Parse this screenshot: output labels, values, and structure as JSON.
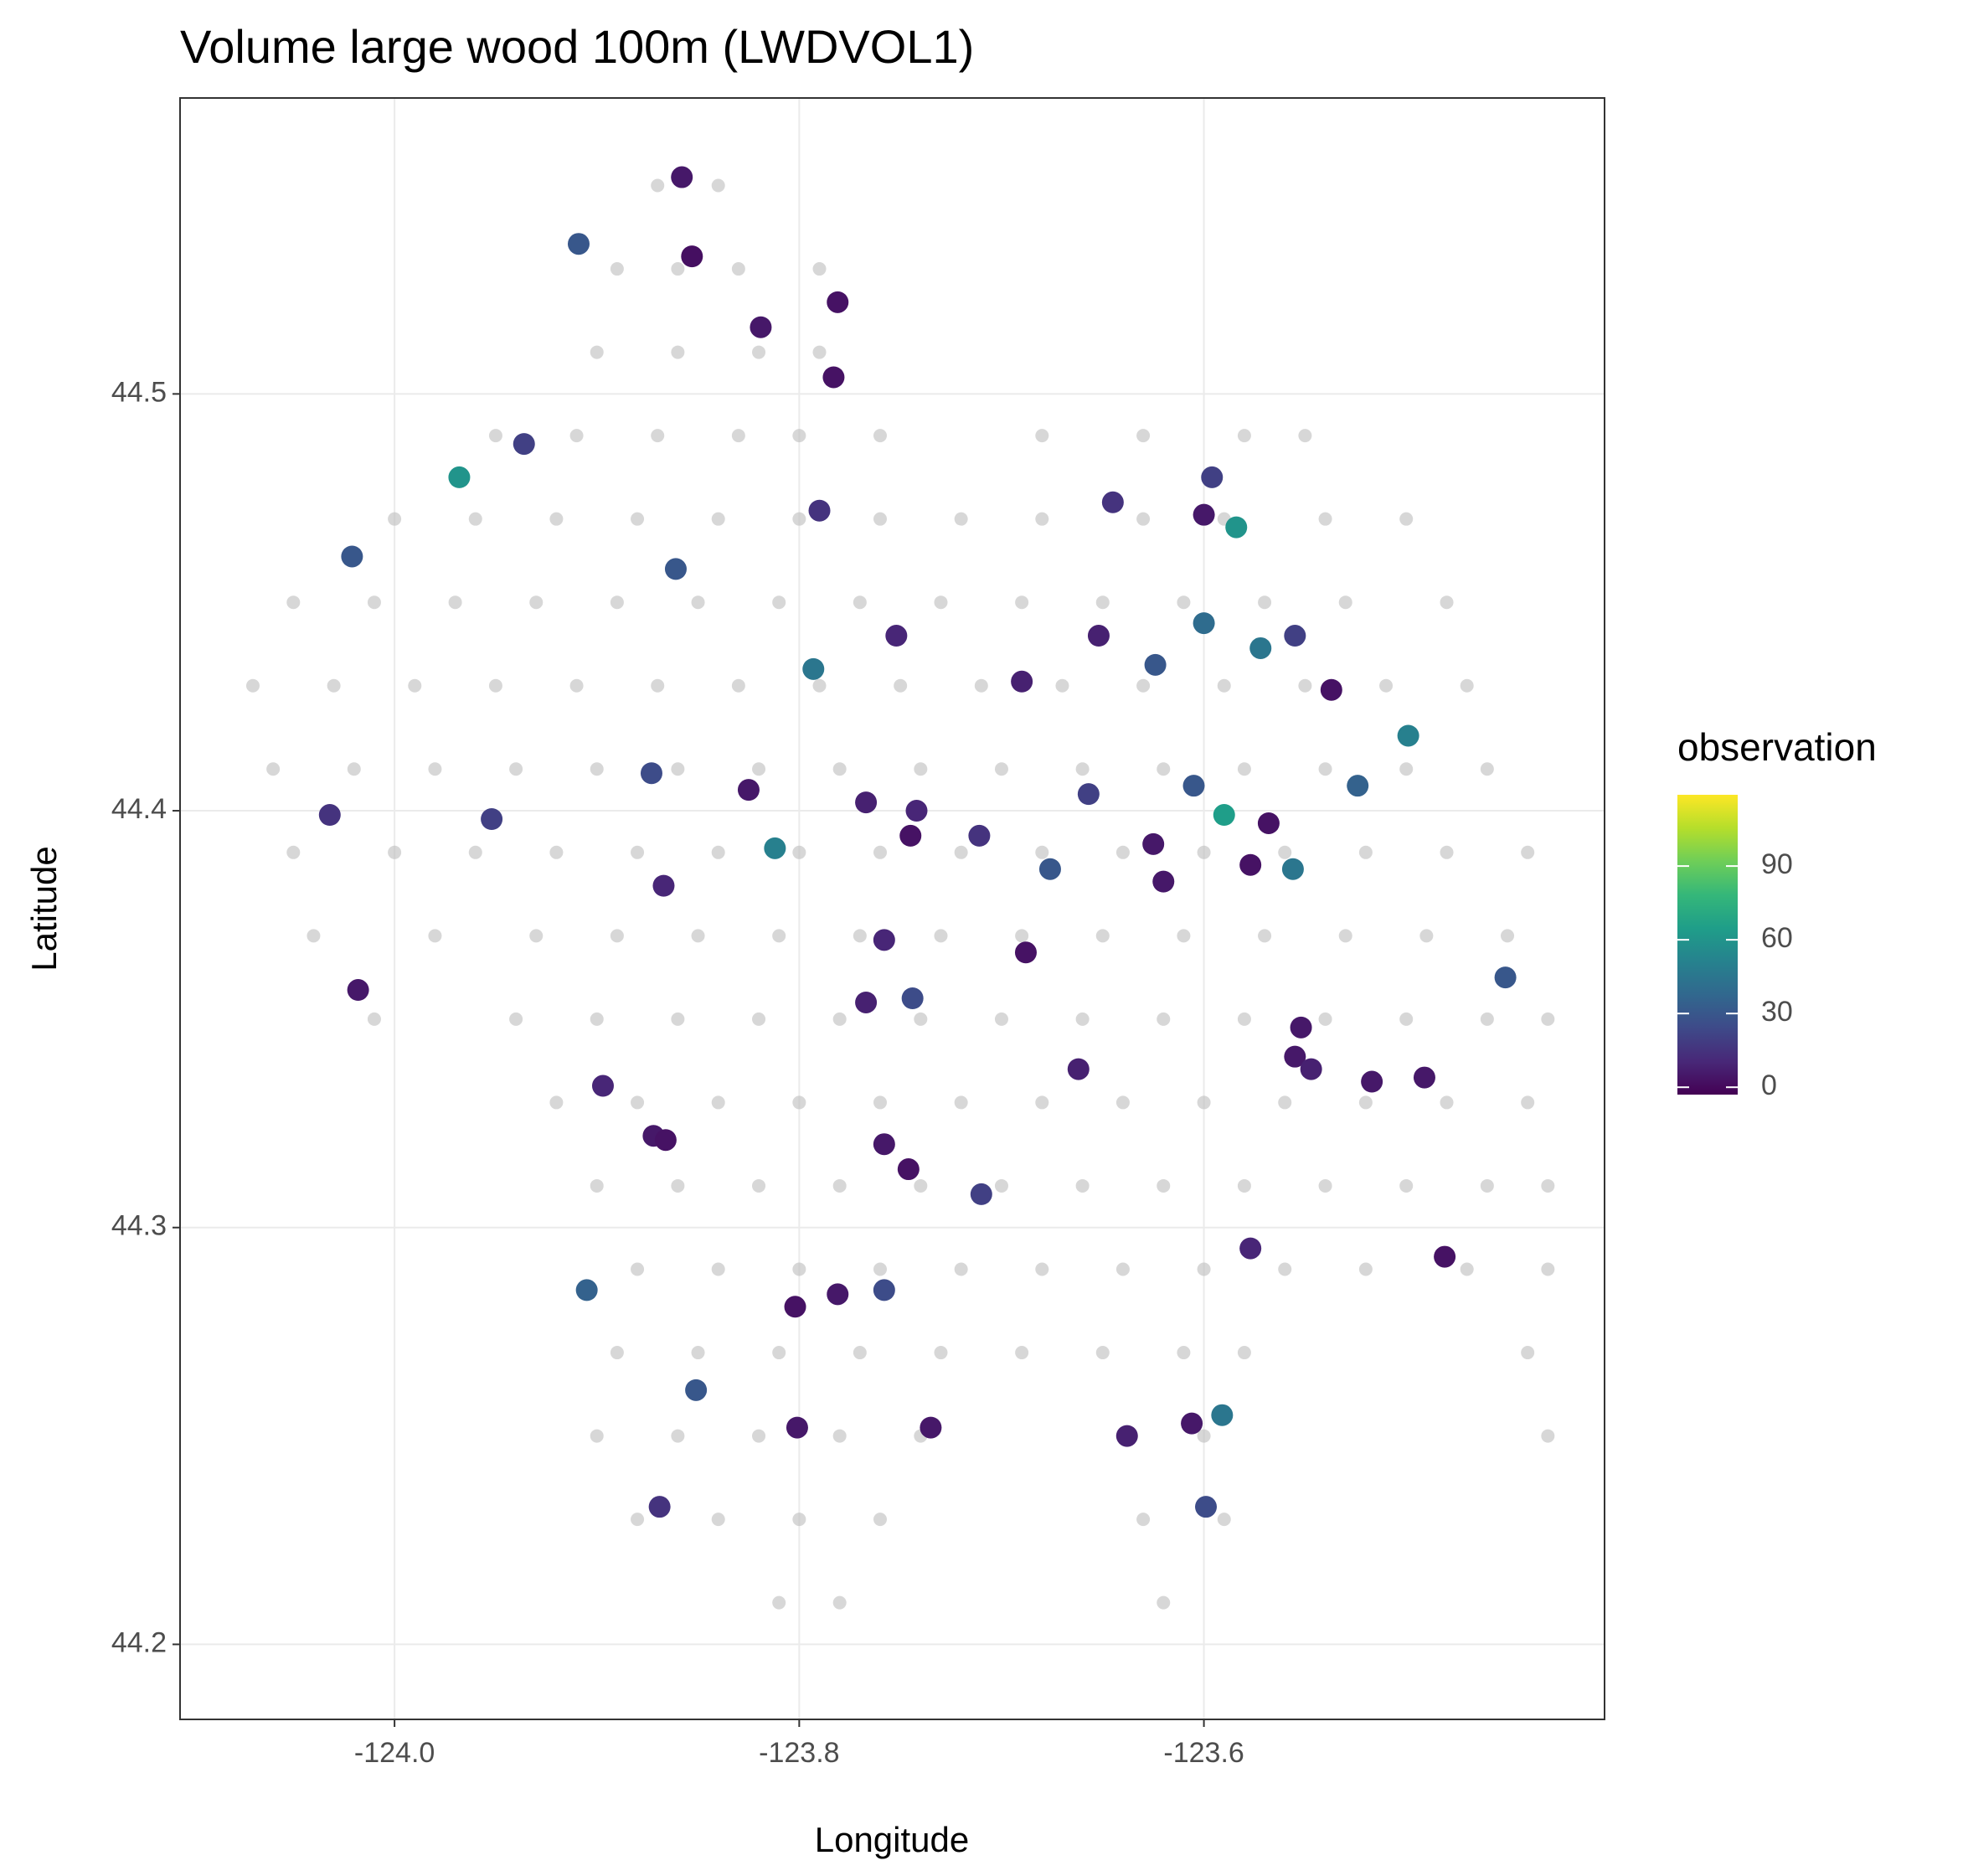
{
  "chart_data": {
    "type": "scatter",
    "title": "Volume large wood 100m (LWDVOL1)",
    "x_label": "Longitude",
    "y_label": "Latitude",
    "legend_title": "observation",
    "grid": true,
    "xlim": [
      -124.106,
      -123.402
    ],
    "ylim": [
      44.182,
      44.571
    ],
    "xticks": [
      {
        "value": -124.0,
        "label": "-124.0"
      },
      {
        "value": -123.8,
        "label": "-123.8"
      },
      {
        "value": -123.6,
        "label": "-123.6"
      }
    ],
    "yticks": [
      44.2,
      44.3,
      44.4,
      44.5
    ],
    "colorbar": {
      "lim": [
        -3,
        119
      ],
      "ticks": [
        0,
        30,
        60,
        90
      ],
      "colors": [
        "#440154",
        "#482878",
        "#3e4a89",
        "#31688e",
        "#26828e",
        "#1f9e89",
        "#35b779",
        "#6ece58",
        "#b5de2b",
        "#fde725"
      ]
    },
    "sites": {
      "color": "#bdbdbd",
      "x": [
        -123.87,
        -123.84,
        -123.89,
        -123.86,
        -123.83,
        -123.79,
        -123.9,
        -123.86,
        -123.82,
        -123.79,
        -123.95,
        -123.91,
        -123.87,
        -123.83,
        -123.8,
        -123.76,
        -123.68,
        -123.63,
        -123.58,
        -123.55,
        -124.0,
        -123.96,
        -123.92,
        -123.88,
        -123.84,
        -123.8,
        -123.76,
        -123.72,
        -123.68,
        -123.63,
        -123.59,
        -123.54,
        -123.5,
        -124.05,
        -124.01,
        -123.97,
        -123.93,
        -123.89,
        -123.85,
        -123.81,
        -123.77,
        -123.73,
        -123.69,
        -123.65,
        -123.61,
        -123.57,
        -123.53,
        -123.48,
        -124.07,
        -124.03,
        -123.99,
        -123.95,
        -123.91,
        -123.87,
        -123.83,
        -123.79,
        -123.75,
        -123.71,
        -123.67,
        -123.63,
        -123.59,
        -123.55,
        -123.51,
        -123.47,
        -124.06,
        -124.02,
        -123.98,
        -123.94,
        -123.9,
        -123.86,
        -123.82,
        -123.78,
        -123.74,
        -123.7,
        -123.66,
        -123.62,
        -123.58,
        -123.54,
        -123.5,
        -123.46,
        -124.05,
        -124.0,
        -123.96,
        -123.92,
        -123.88,
        -123.84,
        -123.8,
        -123.76,
        -123.72,
        -123.68,
        -123.64,
        -123.6,
        -123.56,
        -123.52,
        -123.48,
        -123.44,
        -124.04,
        -123.98,
        -123.93,
        -123.89,
        -123.85,
        -123.81,
        -123.77,
        -123.73,
        -123.69,
        -123.65,
        -123.61,
        -123.57,
        -123.53,
        -123.49,
        -123.45,
        -124.01,
        -123.94,
        -123.9,
        -123.86,
        -123.82,
        -123.78,
        -123.74,
        -123.7,
        -123.66,
        -123.62,
        -123.58,
        -123.54,
        -123.5,
        -123.46,
        -123.43,
        -123.92,
        -123.88,
        -123.84,
        -123.8,
        -123.76,
        -123.72,
        -123.68,
        -123.64,
        -123.6,
        -123.56,
        -123.52,
        -123.48,
        -123.44,
        -123.9,
        -123.86,
        -123.82,
        -123.78,
        -123.74,
        -123.7,
        -123.66,
        -123.62,
        -123.58,
        -123.54,
        -123.5,
        -123.46,
        -123.43,
        -123.88,
        -123.84,
        -123.8,
        -123.76,
        -123.72,
        -123.68,
        -123.64,
        -123.6,
        -123.56,
        -123.52,
        -123.47,
        -123.43,
        -123.89,
        -123.85,
        -123.81,
        -123.77,
        -123.73,
        -123.69,
        -123.65,
        -123.61,
        -123.58,
        -123.44,
        -123.9,
        -123.86,
        -123.82,
        -123.78,
        -123.74,
        -123.64,
        -123.6,
        -123.43,
        -123.88,
        -123.84,
        -123.8,
        -123.76,
        -123.63,
        -123.59,
        -123.81,
        -123.78,
        -123.62
      ],
      "y": [
        44.55,
        44.55,
        44.53,
        44.53,
        44.53,
        44.53,
        44.51,
        44.51,
        44.51,
        44.51,
        44.49,
        44.49,
        44.49,
        44.49,
        44.49,
        44.49,
        44.49,
        44.49,
        44.49,
        44.49,
        44.47,
        44.47,
        44.47,
        44.47,
        44.47,
        44.47,
        44.47,
        44.47,
        44.47,
        44.47,
        44.47,
        44.47,
        44.47,
        44.45,
        44.45,
        44.45,
        44.45,
        44.45,
        44.45,
        44.45,
        44.45,
        44.45,
        44.45,
        44.45,
        44.45,
        44.45,
        44.45,
        44.45,
        44.43,
        44.43,
        44.43,
        44.43,
        44.43,
        44.43,
        44.43,
        44.43,
        44.43,
        44.43,
        44.43,
        44.43,
        44.43,
        44.43,
        44.43,
        44.43,
        44.41,
        44.41,
        44.41,
        44.41,
        44.41,
        44.41,
        44.41,
        44.41,
        44.41,
        44.41,
        44.41,
        44.41,
        44.41,
        44.41,
        44.41,
        44.41,
        44.39,
        44.39,
        44.39,
        44.39,
        44.39,
        44.39,
        44.39,
        44.39,
        44.39,
        44.39,
        44.39,
        44.39,
        44.39,
        44.39,
        44.39,
        44.39,
        44.37,
        44.37,
        44.37,
        44.37,
        44.37,
        44.37,
        44.37,
        44.37,
        44.37,
        44.37,
        44.37,
        44.37,
        44.37,
        44.37,
        44.37,
        44.35,
        44.35,
        44.35,
        44.35,
        44.35,
        44.35,
        44.35,
        44.35,
        44.35,
        44.35,
        44.35,
        44.35,
        44.35,
        44.35,
        44.35,
        44.33,
        44.33,
        44.33,
        44.33,
        44.33,
        44.33,
        44.33,
        44.33,
        44.33,
        44.33,
        44.33,
        44.33,
        44.33,
        44.31,
        44.31,
        44.31,
        44.31,
        44.31,
        44.31,
        44.31,
        44.31,
        44.31,
        44.31,
        44.31,
        44.31,
        44.31,
        44.29,
        44.29,
        44.29,
        44.29,
        44.29,
        44.29,
        44.29,
        44.29,
        44.29,
        44.29,
        44.29,
        44.29,
        44.27,
        44.27,
        44.27,
        44.27,
        44.27,
        44.27,
        44.27,
        44.27,
        44.27,
        44.27,
        44.25,
        44.25,
        44.25,
        44.25,
        44.25,
        44.25,
        44.25,
        44.25,
        44.23,
        44.23,
        44.23,
        44.23,
        44.23,
        44.23,
        44.21,
        44.21,
        44.21
      ]
    },
    "x": [
      -123.858,
      -123.909,
      -123.853,
      -123.781,
      -123.819,
      -123.783,
      -123.936,
      -123.968,
      -124.021,
      -123.861,
      -123.79,
      -123.596,
      -123.645,
      -123.6,
      -123.584,
      -123.652,
      -123.6,
      -123.572,
      -123.555,
      -123.624,
      -123.793,
      -123.752,
      -123.69,
      -123.537,
      -123.499,
      -123.524,
      -123.605,
      -123.59,
      -123.568,
      -123.577,
      -123.556,
      -123.625,
      -123.62,
      -123.657,
      -123.676,
      -123.711,
      -123.742,
      -123.745,
      -123.767,
      -123.825,
      -123.812,
      -123.873,
      -123.952,
      -124.032,
      -123.867,
      -123.758,
      -123.688,
      -123.767,
      -123.744,
      -124.018,
      -123.897,
      -123.872,
      -123.866,
      -123.758,
      -123.746,
      -123.71,
      -123.662,
      -123.552,
      -123.555,
      -123.547,
      -123.517,
      -123.491,
      -123.451,
      -123.481,
      -123.577,
      -123.905,
      -123.802,
      -123.781,
      -123.758,
      -123.851,
      -123.801,
      -123.735,
      -123.869,
      -123.638,
      -123.606,
      -123.591,
      -123.599
    ],
    "y": [
      44.552,
      44.536,
      44.533,
      44.522,
      44.516,
      44.504,
      44.488,
      44.48,
      44.461,
      44.458,
      44.472,
      44.48,
      44.474,
      44.471,
      44.468,
      44.442,
      44.445,
      44.439,
      44.442,
      44.435,
      44.434,
      44.442,
      44.431,
      44.429,
      44.418,
      44.406,
      44.406,
      44.399,
      44.397,
      44.387,
      44.386,
      44.392,
      44.383,
      44.404,
      44.386,
      44.394,
      44.4,
      44.394,
      44.402,
      44.405,
      44.391,
      44.409,
      44.398,
      44.399,
      44.382,
      44.369,
      44.366,
      44.354,
      44.355,
      44.357,
      44.334,
      44.322,
      44.321,
      44.32,
      44.314,
      44.308,
      44.338,
      44.348,
      44.341,
      44.338,
      44.335,
      44.336,
      44.36,
      44.293,
      44.295,
      44.285,
      44.281,
      44.284,
      44.285,
      44.261,
      44.252,
      44.252,
      44.233,
      44.25,
      44.253,
      44.255,
      44.233
    ],
    "values": [
      5,
      30,
      2,
      3,
      5,
      3,
      20,
      60,
      30,
      30,
      15,
      20,
      15,
      5,
      60,
      8,
      40,
      45,
      20,
      30,
      45,
      10,
      8,
      3,
      50,
      35,
      30,
      65,
      3,
      3,
      45,
      5,
      5,
      20,
      30,
      15,
      10,
      3,
      8,
      5,
      50,
      25,
      20,
      15,
      10,
      10,
      3,
      8,
      25,
      5,
      10,
      5,
      3,
      5,
      3,
      20,
      8,
      5,
      5,
      8,
      5,
      5,
      30,
      3,
      10,
      35,
      3,
      5,
      25,
      30,
      5,
      5,
      15,
      8,
      5,
      45,
      25
    ]
  }
}
